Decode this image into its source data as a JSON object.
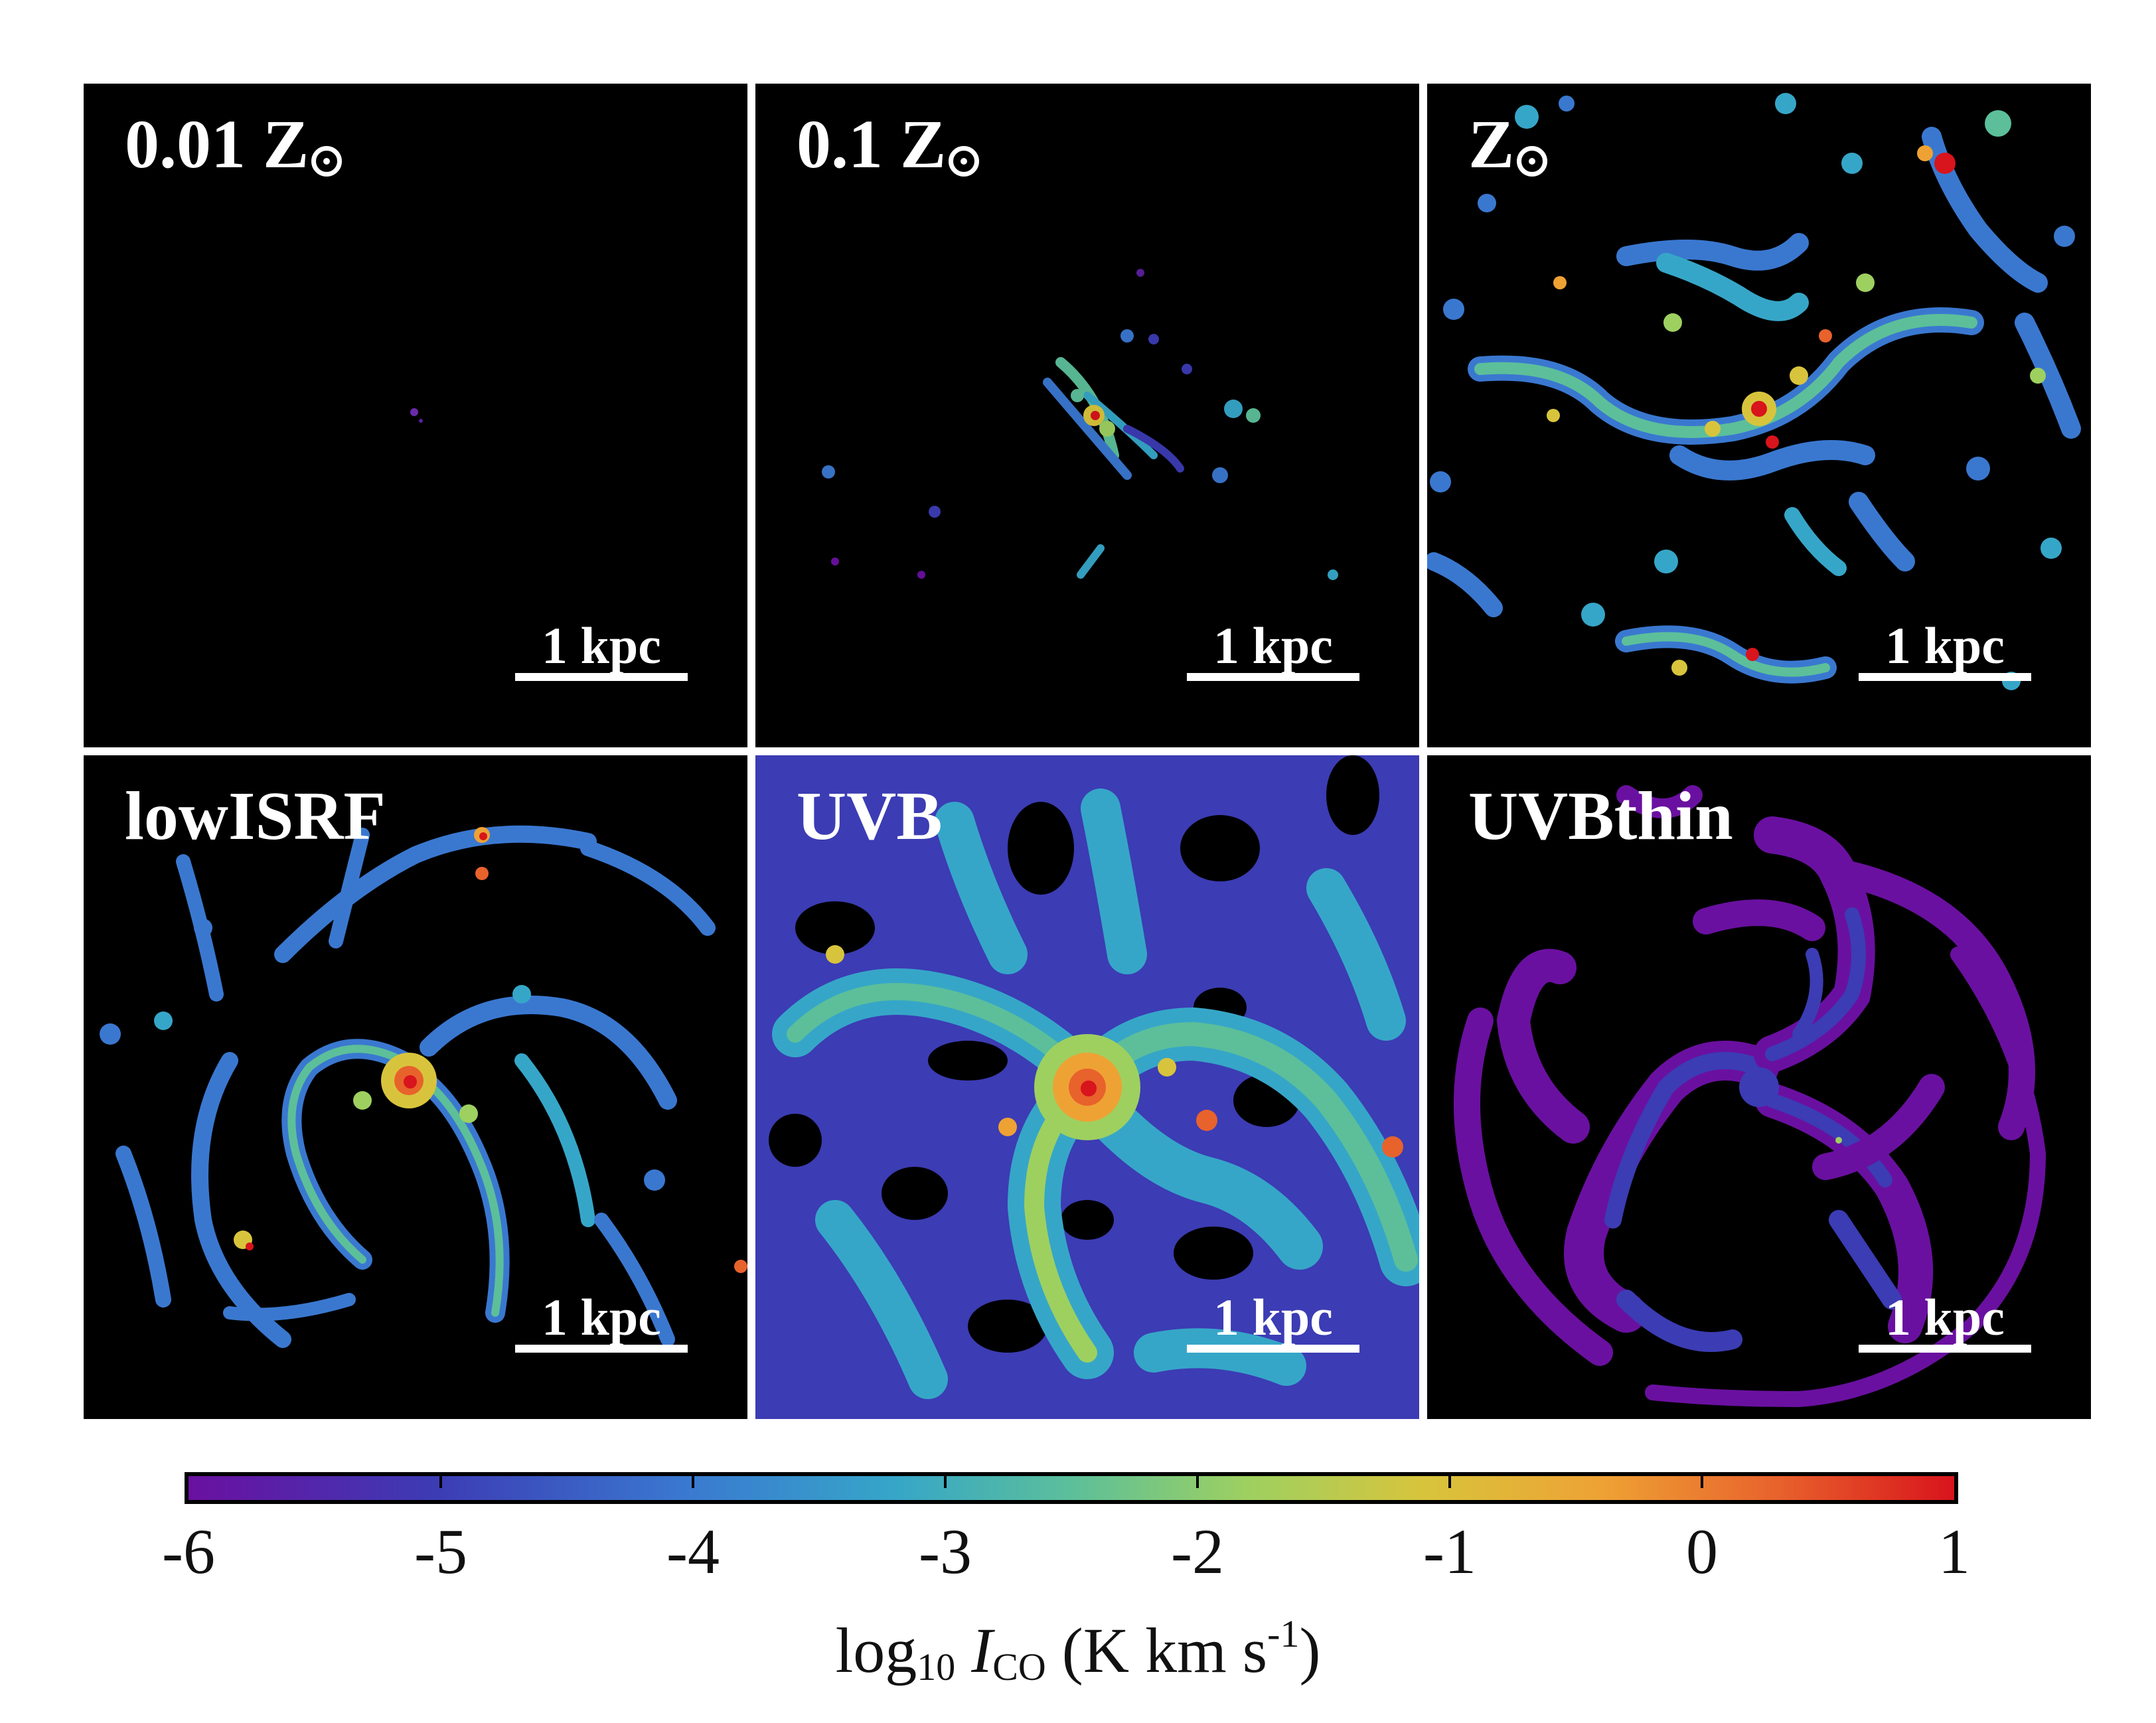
{
  "panels": [
    {
      "id": "p1",
      "label_text": "0.01 Z",
      "has_sun": true
    },
    {
      "id": "p2",
      "label_text": "0.1 Z",
      "has_sun": true
    },
    {
      "id": "p3",
      "label_text": "Z",
      "has_sun": true
    },
    {
      "id": "p4",
      "label_text": "lowISRF",
      "has_sun": false
    },
    {
      "id": "p5",
      "label_text": "UVB",
      "has_sun": false
    },
    {
      "id": "p6",
      "label_text": "UVBthin",
      "has_sun": false
    }
  ],
  "scale_bar_label": "1 kpc",
  "colorbar": {
    "ticks": [
      "-6",
      "-5",
      "-4",
      "-3",
      "-2",
      "-1",
      "0",
      "1"
    ],
    "range": [
      -6,
      1
    ],
    "title_log": "log",
    "title_log_sub": "10",
    "title_var": "I",
    "title_var_sub": "CO",
    "title_units": "(K km s",
    "title_units_sup": "-1",
    "title_close": ")",
    "colors": [
      "#6a10a0",
      "#3c3cb4",
      "#3a78d0",
      "#36a6c8",
      "#5cbf9a",
      "#9ed060",
      "#d8c43c",
      "#eea234",
      "#e8622c",
      "#d8141c"
    ]
  },
  "palette": {
    "background": "#000000",
    "divider": "#ffffff"
  }
}
